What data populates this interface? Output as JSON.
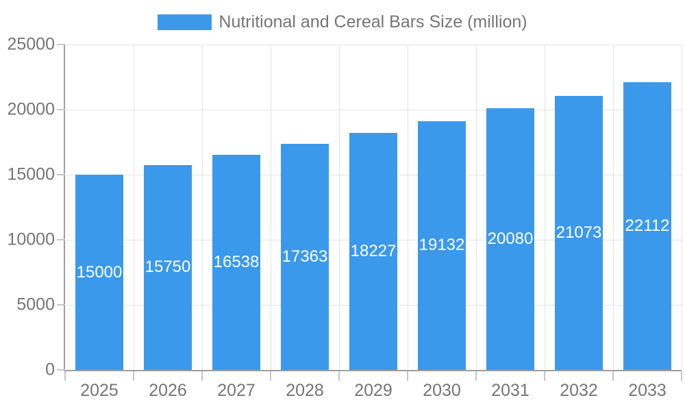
{
  "legend": {
    "label": "Nutritional and Cereal Bars Size (million)"
  },
  "chart_data": {
    "type": "bar",
    "title": "Nutritional and Cereal Bars Size (million)",
    "categories": [
      "2025",
      "2026",
      "2027",
      "2028",
      "2029",
      "2030",
      "2031",
      "2032",
      "2033"
    ],
    "values": [
      15000,
      15750,
      16538,
      17363,
      18227,
      19132,
      20080,
      21073,
      22112
    ],
    "xlabel": "",
    "ylabel": "",
    "ylim": [
      0,
      25000
    ],
    "yticks": [
      0,
      5000,
      10000,
      15000,
      20000,
      25000
    ],
    "grid": "horizontal-and-vertical",
    "legend_position": "top",
    "bar_value_labels": "inside-center"
  },
  "colors": {
    "bar_fill": "#3B99EC",
    "bar_value_text": "#FFFFFF",
    "grid": "#E3E3E3",
    "axis": "#9E9E9E",
    "tick": "#C6C6C6",
    "label_text": "#757575",
    "background": "#FFFFFF"
  }
}
